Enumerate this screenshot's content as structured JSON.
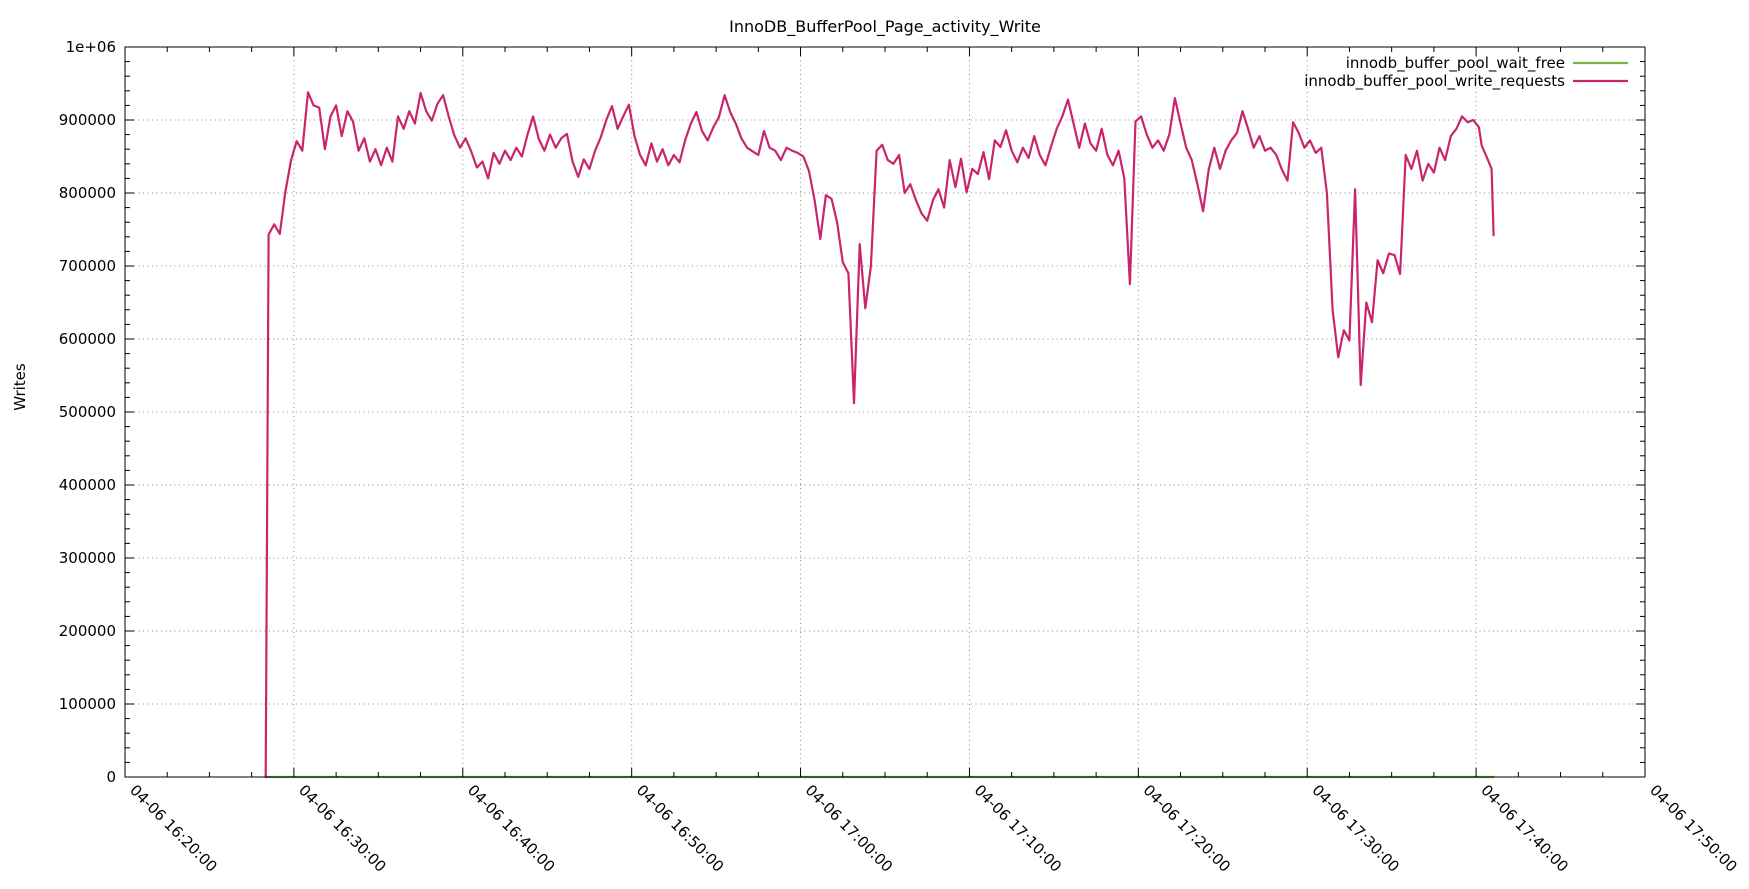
{
  "page": {
    "background": "#ffffff",
    "frame_color": "#000000"
  },
  "chart_data": {
    "type": "line",
    "title": "InnoDB_BufferPool_Page_activity_Write",
    "xlabel": "",
    "ylabel": "Writes",
    "x_unit": "seconds since 04-06 16:20:00",
    "x_axis": {
      "range_seconds": [
        0,
        5400
      ],
      "tick_values": [
        0,
        600,
        1200,
        1800,
        2400,
        3000,
        3600,
        4200,
        4800,
        5400
      ],
      "tick_labels": [
        "04-06 16:20:00",
        "04-06 16:30:00",
        "04-06 16:40:00",
        "04-06 16:50:00",
        "04-06 17:00:00",
        "04-06 17:10:00",
        "04-06 17:20:00",
        "04-06 17:30:00",
        "04-06 17:40:00",
        "04-06 17:50:00"
      ],
      "minor_divisions_per_major": 4,
      "label_rotation_deg": 45
    },
    "y_axis": {
      "range": [
        0,
        1000000
      ],
      "tick_values": [
        0,
        100000,
        200000,
        300000,
        400000,
        500000,
        600000,
        700000,
        800000,
        900000,
        1000000
      ],
      "tick_labels": [
        "0",
        "100000",
        "200000",
        "300000",
        "400000",
        "500000",
        "600000",
        "700000",
        "800000",
        "900000",
        "1e+06"
      ],
      "minor_divisions_per_major": 5
    },
    "grid": {
      "show": true,
      "style": "dotted",
      "color": "#8a8a8a"
    },
    "legend": {
      "position": "top-right-inside",
      "entries": [
        {
          "label": "innodb_buffer_pool_wait_free",
          "color": "#77B347"
        },
        {
          "label": "innodb_buffer_pool_write_requests",
          "color": "#C9256D"
        }
      ]
    },
    "series": [
      {
        "name": "innodb_buffer_pool_wait_free",
        "color": "#77B347",
        "points": [
          [
            500,
            0
          ],
          [
            4862,
            0
          ]
        ]
      },
      {
        "name": "innodb_buffer_pool_write_requests",
        "color": "#C9256D",
        "points": [
          [
            500,
            0
          ],
          [
            510,
            743000
          ],
          [
            530,
            757000
          ],
          [
            550,
            744000
          ],
          [
            570,
            802000
          ],
          [
            590,
            845000
          ],
          [
            610,
            871000
          ],
          [
            630,
            858000
          ],
          [
            650,
            938000
          ],
          [
            670,
            920000
          ],
          [
            690,
            917000
          ],
          [
            710,
            860000
          ],
          [
            730,
            905000
          ],
          [
            750,
            920000
          ],
          [
            770,
            878000
          ],
          [
            790,
            912000
          ],
          [
            810,
            898000
          ],
          [
            830,
            858000
          ],
          [
            850,
            875000
          ],
          [
            870,
            843000
          ],
          [
            890,
            860000
          ],
          [
            910,
            838000
          ],
          [
            930,
            862000
          ],
          [
            950,
            843000
          ],
          [
            970,
            905000
          ],
          [
            990,
            888000
          ],
          [
            1010,
            912000
          ],
          [
            1030,
            895000
          ],
          [
            1050,
            937000
          ],
          [
            1070,
            912000
          ],
          [
            1090,
            899000
          ],
          [
            1110,
            922000
          ],
          [
            1130,
            934000
          ],
          [
            1150,
            905000
          ],
          [
            1170,
            879000
          ],
          [
            1190,
            862000
          ],
          [
            1210,
            875000
          ],
          [
            1230,
            857000
          ],
          [
            1250,
            835000
          ],
          [
            1270,
            843000
          ],
          [
            1290,
            820000
          ],
          [
            1310,
            855000
          ],
          [
            1330,
            840000
          ],
          [
            1350,
            858000
          ],
          [
            1370,
            845000
          ],
          [
            1390,
            862000
          ],
          [
            1410,
            850000
          ],
          [
            1430,
            880000
          ],
          [
            1450,
            905000
          ],
          [
            1470,
            874000
          ],
          [
            1490,
            858000
          ],
          [
            1510,
            880000
          ],
          [
            1530,
            862000
          ],
          [
            1550,
            875000
          ],
          [
            1570,
            881000
          ],
          [
            1590,
            843000
          ],
          [
            1610,
            822000
          ],
          [
            1630,
            846000
          ],
          [
            1650,
            833000
          ],
          [
            1670,
            858000
          ],
          [
            1690,
            876000
          ],
          [
            1710,
            900000
          ],
          [
            1730,
            919000
          ],
          [
            1750,
            888000
          ],
          [
            1770,
            905000
          ],
          [
            1790,
            921000
          ],
          [
            1810,
            878000
          ],
          [
            1830,
            852000
          ],
          [
            1850,
            838000
          ],
          [
            1870,
            868000
          ],
          [
            1890,
            843000
          ],
          [
            1910,
            860000
          ],
          [
            1930,
            838000
          ],
          [
            1950,
            852000
          ],
          [
            1970,
            842000
          ],
          [
            1990,
            872000
          ],
          [
            2010,
            895000
          ],
          [
            2030,
            911000
          ],
          [
            2050,
            885000
          ],
          [
            2070,
            872000
          ],
          [
            2090,
            890000
          ],
          [
            2110,
            904000
          ],
          [
            2130,
            934000
          ],
          [
            2150,
            911000
          ],
          [
            2170,
            895000
          ],
          [
            2190,
            875000
          ],
          [
            2210,
            862000
          ],
          [
            2230,
            857000
          ],
          [
            2250,
            852000
          ],
          [
            2270,
            885000
          ],
          [
            2290,
            862000
          ],
          [
            2310,
            858000
          ],
          [
            2330,
            845000
          ],
          [
            2350,
            862000
          ],
          [
            2370,
            858000
          ],
          [
            2390,
            855000
          ],
          [
            2410,
            850000
          ],
          [
            2430,
            830000
          ],
          [
            2450,
            790000
          ],
          [
            2470,
            737000
          ],
          [
            2490,
            797000
          ],
          [
            2510,
            792000
          ],
          [
            2530,
            760000
          ],
          [
            2550,
            705000
          ],
          [
            2570,
            690000
          ],
          [
            2590,
            512000
          ],
          [
            2610,
            730000
          ],
          [
            2630,
            642000
          ],
          [
            2650,
            700000
          ],
          [
            2670,
            858000
          ],
          [
            2690,
            866000
          ],
          [
            2710,
            845000
          ],
          [
            2730,
            840000
          ],
          [
            2750,
            852000
          ],
          [
            2770,
            800000
          ],
          [
            2790,
            812000
          ],
          [
            2810,
            790000
          ],
          [
            2830,
            772000
          ],
          [
            2850,
            762000
          ],
          [
            2870,
            790000
          ],
          [
            2890,
            805000
          ],
          [
            2910,
            780000
          ],
          [
            2930,
            845000
          ],
          [
            2950,
            808000
          ],
          [
            2970,
            847000
          ],
          [
            2990,
            801000
          ],
          [
            3010,
            833000
          ],
          [
            3030,
            826000
          ],
          [
            3050,
            856000
          ],
          [
            3070,
            819000
          ],
          [
            3090,
            872000
          ],
          [
            3110,
            863000
          ],
          [
            3130,
            886000
          ],
          [
            3150,
            858000
          ],
          [
            3170,
            842000
          ],
          [
            3190,
            862000
          ],
          [
            3210,
            848000
          ],
          [
            3230,
            878000
          ],
          [
            3250,
            852000
          ],
          [
            3270,
            838000
          ],
          [
            3290,
            864000
          ],
          [
            3310,
            888000
          ],
          [
            3330,
            905000
          ],
          [
            3350,
            928000
          ],
          [
            3370,
            895000
          ],
          [
            3390,
            862000
          ],
          [
            3410,
            895000
          ],
          [
            3430,
            868000
          ],
          [
            3450,
            858000
          ],
          [
            3470,
            888000
          ],
          [
            3490,
            852000
          ],
          [
            3510,
            838000
          ],
          [
            3530,
            858000
          ],
          [
            3550,
            820000
          ],
          [
            3570,
            675000
          ],
          [
            3590,
            898000
          ],
          [
            3610,
            905000
          ],
          [
            3630,
            880000
          ],
          [
            3650,
            862000
          ],
          [
            3670,
            872000
          ],
          [
            3690,
            858000
          ],
          [
            3710,
            880000
          ],
          [
            3730,
            930000
          ],
          [
            3750,
            895000
          ],
          [
            3770,
            862000
          ],
          [
            3790,
            845000
          ],
          [
            3810,
            812000
          ],
          [
            3830,
            775000
          ],
          [
            3850,
            832000
          ],
          [
            3870,
            862000
          ],
          [
            3890,
            833000
          ],
          [
            3910,
            858000
          ],
          [
            3930,
            872000
          ],
          [
            3950,
            882000
          ],
          [
            3970,
            912000
          ],
          [
            3990,
            888000
          ],
          [
            4010,
            862000
          ],
          [
            4030,
            878000
          ],
          [
            4050,
            858000
          ],
          [
            4070,
            862000
          ],
          [
            4090,
            852000
          ],
          [
            4110,
            832000
          ],
          [
            4130,
            817000
          ],
          [
            4150,
            897000
          ],
          [
            4170,
            882000
          ],
          [
            4190,
            862000
          ],
          [
            4210,
            872000
          ],
          [
            4230,
            855000
          ],
          [
            4250,
            862000
          ],
          [
            4270,
            800000
          ],
          [
            4290,
            640000
          ],
          [
            4310,
            575000
          ],
          [
            4330,
            612000
          ],
          [
            4350,
            598000
          ],
          [
            4370,
            805000
          ],
          [
            4390,
            537000
          ],
          [
            4410,
            650000
          ],
          [
            4430,
            623000
          ],
          [
            4450,
            708000
          ],
          [
            4470,
            690000
          ],
          [
            4490,
            717000
          ],
          [
            4510,
            715000
          ],
          [
            4530,
            689000
          ],
          [
            4550,
            852000
          ],
          [
            4570,
            833000
          ],
          [
            4590,
            858000
          ],
          [
            4610,
            817000
          ],
          [
            4630,
            840000
          ],
          [
            4650,
            828000
          ],
          [
            4670,
            862000
          ],
          [
            4690,
            845000
          ],
          [
            4710,
            878000
          ],
          [
            4730,
            888000
          ],
          [
            4750,
            905000
          ],
          [
            4770,
            897000
          ],
          [
            4790,
            900000
          ],
          [
            4810,
            890000
          ],
          [
            4820,
            865000
          ],
          [
            4840,
            847000
          ],
          [
            4855,
            833000
          ],
          [
            4862,
            742000
          ]
        ]
      }
    ]
  }
}
